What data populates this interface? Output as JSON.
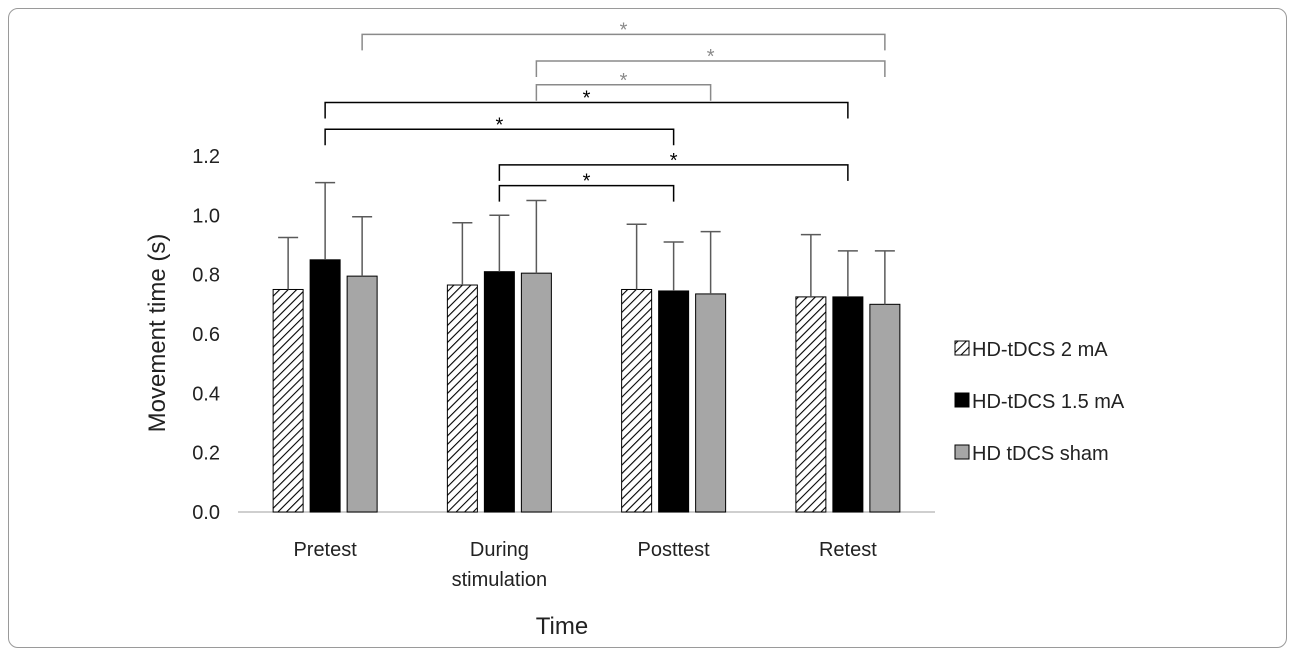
{
  "chart_data": {
    "type": "bar",
    "categories": [
      "Pretest",
      "During stimulation",
      "Posttest",
      "Retest"
    ],
    "category_lines": [
      [
        "Pretest"
      ],
      [
        "During",
        "stimulation"
      ],
      [
        "Posttest"
      ],
      [
        "Retest"
      ]
    ],
    "xlabel": "Time",
    "ylabel": "Movement time (s)",
    "ylim": [
      0,
      1.2
    ],
    "yticks": [
      "0.0",
      "0.2",
      "0.4",
      "0.6",
      "0.8",
      "1.0",
      "1.2"
    ],
    "legend_position": "right",
    "series": [
      {
        "name": "HD-tDCS 2 mA",
        "values": [
          0.75,
          0.765,
          0.75,
          0.725
        ],
        "error": [
          0.175,
          0.21,
          0.22,
          0.21
        ],
        "fill": "hatched",
        "color": "#ffffff"
      },
      {
        "name": "HD-tDCS 1.5 mA",
        "values": [
          0.85,
          0.81,
          0.745,
          0.725
        ],
        "error": [
          0.26,
          0.19,
          0.165,
          0.155
        ],
        "fill": "solid",
        "color": "#000000"
      },
      {
        "name": "HD tDCS sham",
        "values": [
          0.795,
          0.805,
          0.735,
          0.7
        ],
        "error": [
          0.2,
          0.245,
          0.21,
          0.18
        ],
        "fill": "solid",
        "color": "#a6a6a6"
      }
    ],
    "annotations": [
      {
        "from": "Pretest",
        "from_series": 1,
        "to": "Retest",
        "to_series": 1,
        "level": 1.38,
        "label": "*",
        "color": "#000000"
      },
      {
        "from": "Pretest",
        "from_series": 1,
        "to": "Posttest",
        "to_series": 1,
        "level": 1.29,
        "label": "*",
        "color": "#000000"
      },
      {
        "from": "During stimulation",
        "from_series": 1,
        "to": "Retest",
        "to_series": 1,
        "level": 1.17,
        "label": "*",
        "color": "#000000"
      },
      {
        "from": "During stimulation",
        "from_series": 1,
        "to": "Posttest",
        "to_series": 1,
        "level": 1.1,
        "label": "*",
        "color": "#000000"
      },
      {
        "from": "Pretest",
        "from_series": 2,
        "to": "Retest",
        "to_series": 2,
        "level": 1.61,
        "label": "*",
        "color": "#8a8a8a"
      },
      {
        "from": "During stimulation",
        "from_series": 2,
        "to": "Retest",
        "to_series": 2,
        "level": 1.52,
        "label": "*",
        "color": "#8a8a8a"
      },
      {
        "from": "During stimulation",
        "from_series": 2,
        "to": "Posttest",
        "to_series": 2,
        "level": 1.44,
        "label": "*",
        "color": "#8a8a8a"
      }
    ]
  }
}
